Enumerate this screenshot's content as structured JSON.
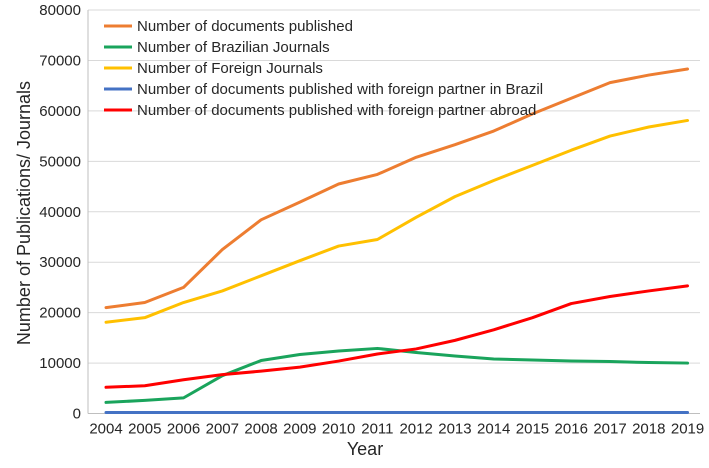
{
  "chart_data": {
    "type": "line",
    "title": "",
    "xlabel": "Year",
    "ylabel": "Number of Publications/ Journals",
    "x": [
      2004,
      2005,
      2006,
      2007,
      2008,
      2009,
      2010,
      2011,
      2012,
      2013,
      2014,
      2015,
      2016,
      2017,
      2018,
      2019
    ],
    "ylim": [
      0,
      80000
    ],
    "yticks": [
      0,
      10000,
      20000,
      30000,
      40000,
      50000,
      60000,
      70000,
      80000
    ],
    "grid": "horizontal",
    "legend_position": "top-left-inside",
    "series": [
      {
        "name": "Number of documents published",
        "color": "#ED7D31",
        "values": [
          21000,
          22000,
          25000,
          32500,
          38400,
          41900,
          45500,
          47400,
          50800,
          53300,
          56000,
          59400,
          62500,
          65600,
          67100,
          68300
        ]
      },
      {
        "name": "Number of Brazilian Journals",
        "color": "#1AA45C",
        "values": [
          2200,
          2600,
          3100,
          7500,
          10500,
          11700,
          12400,
          12900,
          12100,
          11400,
          10800,
          10600,
          10400,
          10300,
          10100,
          10000
        ]
      },
      {
        "name": "Number of Foreign Journals",
        "color": "#FFC000",
        "values": [
          18100,
          19000,
          22000,
          24300,
          27300,
          30300,
          33200,
          34500,
          38900,
          43000,
          46200,
          49200,
          52200,
          55000,
          56800,
          58100
        ]
      },
      {
        "name": "Number of documents published with foreign partner in Brazil",
        "color": "#4472C4",
        "values": [
          200,
          200,
          200,
          200,
          200,
          200,
          200,
          200,
          200,
          200,
          200,
          200,
          200,
          200,
          200,
          200
        ]
      },
      {
        "name": "Number of documents published with foreign partner abroad",
        "color": "#FF0000",
        "values": [
          5200,
          5500,
          6700,
          7700,
          8400,
          9200,
          10400,
          11800,
          12800,
          14500,
          16600,
          19000,
          21800,
          23200,
          24300,
          25300
        ]
      }
    ],
    "colors": {
      "gridline": "#D9D9D9",
      "axis_line": "#BFBFBF",
      "text": "#262626"
    }
  }
}
